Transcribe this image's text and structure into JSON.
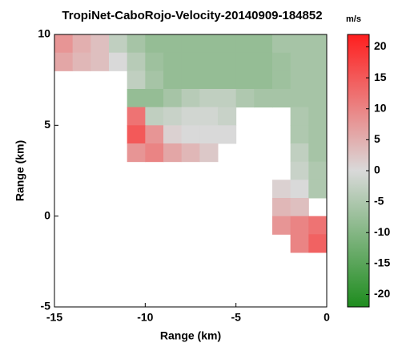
{
  "chart_data": {
    "type": "heatmap",
    "title": "TropiNet-CaboRojo-Velocity-20140909-184852",
    "colorbar_unit": "m/s",
    "xlabel": "Range (km)",
    "ylabel": "Range (km)",
    "x": [
      -14.5,
      -13.5,
      -12.5,
      -11.5,
      -10.5,
      -9.5,
      -8.5,
      -7.5,
      -6.5,
      -5.5,
      -4.5,
      -3.5,
      -2.5,
      -1.5,
      -0.5
    ],
    "y": [
      9.5,
      8.5,
      7.5,
      6.5,
      5.5,
      4.5,
      3.5,
      2.5,
      1.5,
      0.5,
      -0.5,
      -1.5,
      -2.5,
      -3.5,
      -4.5
    ],
    "values": [
      [
        8,
        5,
        3,
        -3,
        -6,
        -8,
        -8,
        -8,
        -8,
        -8,
        -8,
        -8,
        -6,
        -6,
        -6
      ],
      [
        6,
        4,
        3,
        0,
        -4,
        -7,
        -8,
        -8,
        -8,
        -8,
        -8,
        -8,
        -7,
        -6,
        -6
      ],
      [
        null,
        null,
        null,
        null,
        -3,
        -6,
        -8,
        -8,
        -8,
        -8,
        -8,
        -8,
        -7,
        -6,
        -6
      ],
      [
        null,
        null,
        null,
        null,
        -8,
        -8,
        -6,
        -4,
        -3,
        -3,
        -5,
        -6,
        -6,
        -6,
        -6
      ],
      [
        null,
        null,
        null,
        null,
        12,
        -3,
        -2,
        -1,
        -1,
        -2,
        null,
        null,
        null,
        -5,
        -6
      ],
      [
        null,
        null,
        null,
        null,
        15,
        8,
        1,
        0,
        0,
        0,
        null,
        null,
        null,
        -5,
        -6
      ],
      [
        null,
        null,
        null,
        null,
        8,
        10,
        6,
        4,
        2,
        null,
        null,
        null,
        null,
        -3,
        -6
      ],
      [
        null,
        null,
        null,
        null,
        null,
        null,
        null,
        null,
        null,
        null,
        null,
        null,
        null,
        -2,
        -5
      ],
      [
        null,
        null,
        null,
        null,
        null,
        null,
        null,
        null,
        null,
        null,
        null,
        null,
        1,
        0,
        -5
      ],
      [
        null,
        null,
        null,
        null,
        null,
        null,
        null,
        null,
        null,
        null,
        null,
        null,
        4,
        3,
        null
      ],
      [
        null,
        null,
        null,
        null,
        null,
        null,
        null,
        null,
        null,
        null,
        null,
        null,
        8,
        10,
        12
      ],
      [
        null,
        null,
        null,
        null,
        null,
        null,
        null,
        null,
        null,
        null,
        null,
        null,
        null,
        10,
        14
      ],
      [
        null,
        null,
        null,
        null,
        null,
        null,
        null,
        null,
        null,
        null,
        null,
        null,
        null,
        null,
        null
      ],
      [
        null,
        null,
        null,
        null,
        null,
        null,
        null,
        null,
        null,
        null,
        null,
        null,
        null,
        null,
        null
      ],
      [
        null,
        null,
        null,
        null,
        null,
        null,
        null,
        null,
        null,
        null,
        null,
        null,
        null,
        null,
        null
      ]
    ],
    "xlim": [
      -15,
      0
    ],
    "ylim": [
      -5,
      10
    ],
    "xticks": [
      -15,
      -10,
      -5,
      0
    ],
    "yticks": [
      -5,
      0,
      5,
      10
    ],
    "clim": [
      -22,
      22
    ],
    "cticks": [
      -20,
      -15,
      -10,
      -5,
      0,
      5,
      10,
      15,
      20
    ],
    "colormap": [
      "#1e8c1e",
      "#d9d9d9",
      "#ff1e1e"
    ]
  }
}
